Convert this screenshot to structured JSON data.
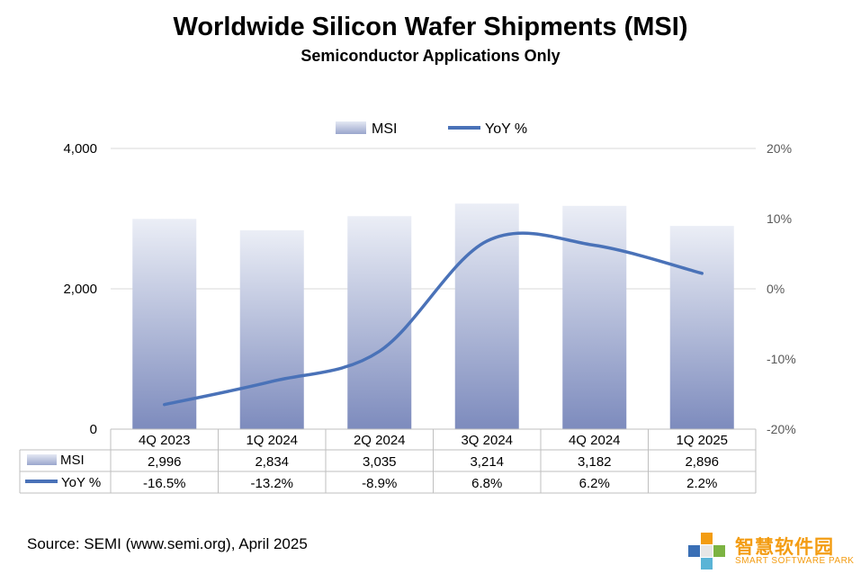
{
  "chart_data": {
    "type": "bar",
    "title": "Worldwide Silicon Wafer Shipments (MSI)",
    "subtitle": "Semiconductor Applications Only",
    "categories": [
      "4Q 2023",
      "1Q 2024",
      "2Q 2024",
      "3Q 2024",
      "4Q 2024",
      "1Q 2025"
    ],
    "series": [
      {
        "name": "MSI",
        "type": "bar",
        "axis": "left",
        "values": [
          2996,
          2834,
          3035,
          3214,
          3182,
          2896
        ],
        "labels": [
          "2,996",
          "2,834",
          "3,035",
          "3,214",
          "3,182",
          "2,896"
        ]
      },
      {
        "name": "YoY %",
        "type": "line",
        "axis": "right",
        "values": [
          -16.5,
          -13.2,
          -8.9,
          6.8,
          6.2,
          2.2
        ],
        "labels": [
          "-16.5%",
          "-13.2%",
          "-8.9%",
          "6.8%",
          "6.2%",
          "2.2%"
        ]
      }
    ],
    "y_left": {
      "min": 0,
      "max": 4000,
      "ticks": [
        0,
        2000,
        4000
      ],
      "tick_labels": [
        "0",
        "2,000",
        "4,000"
      ]
    },
    "y_right": {
      "min": -20,
      "max": 20,
      "ticks": [
        20,
        10,
        0,
        -10,
        -20
      ],
      "tick_labels": [
        "20%",
        "10%",
        "0%",
        "-10%",
        "-20%"
      ]
    },
    "legend": [
      "MSI",
      "YoY %"
    ],
    "colors": {
      "bar_top": "#e9ecf5",
      "bar_bottom": "#7f8dbe",
      "line": "#4a72b8",
      "grid": "#d9d9d9",
      "axis_text": "#595959",
      "table_border": "#bfbfbf"
    }
  },
  "source": "Source: SEMI (www.semi.org), April 2025",
  "logo": {
    "name_cn": "智慧软件园",
    "name_en": "SMART SOFTWARE PARK"
  }
}
